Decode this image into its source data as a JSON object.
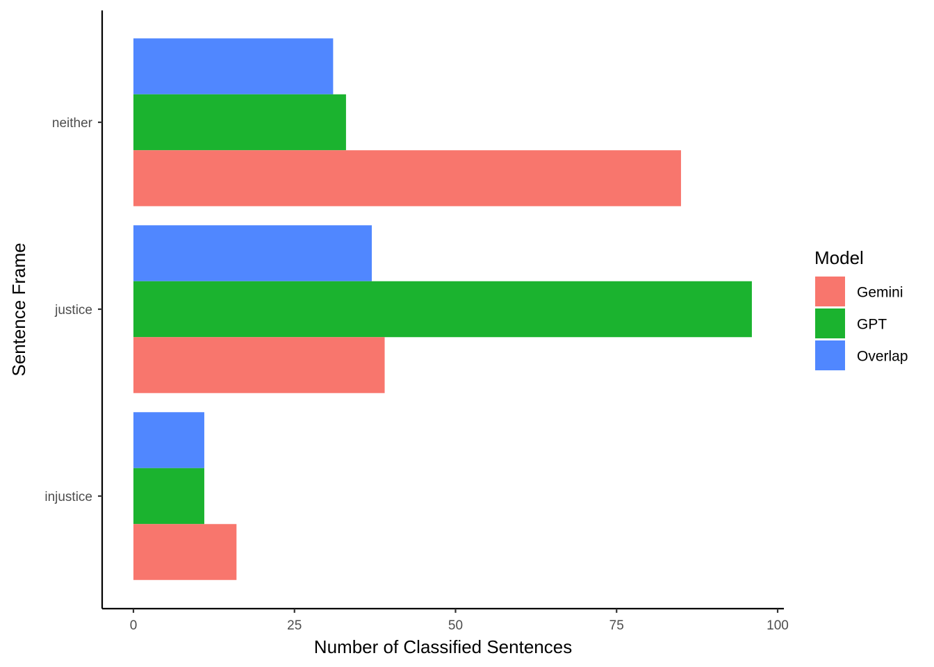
{
  "chart_data": {
    "type": "bar",
    "orientation": "horizontal",
    "categories": [
      "neither",
      "justice",
      "injustice"
    ],
    "series": [
      {
        "name": "Gemini",
        "values": [
          85,
          39,
          16
        ],
        "color": "#F8766D"
      },
      {
        "name": "GPT",
        "values": [
          33,
          96,
          11
        ],
        "color": "#1BB32F"
      },
      {
        "name": "Overlap",
        "values": [
          31,
          37,
          11
        ],
        "color": "#5087FF"
      }
    ],
    "xlabel": "Number of Classified Sentences",
    "ylabel": "Sentence Frame",
    "xlim": [
      0,
      100
    ],
    "xticks": [
      "0",
      "25",
      "50",
      "75",
      "100"
    ],
    "grid": false,
    "legend": {
      "title": "Model",
      "position": "right"
    }
  }
}
